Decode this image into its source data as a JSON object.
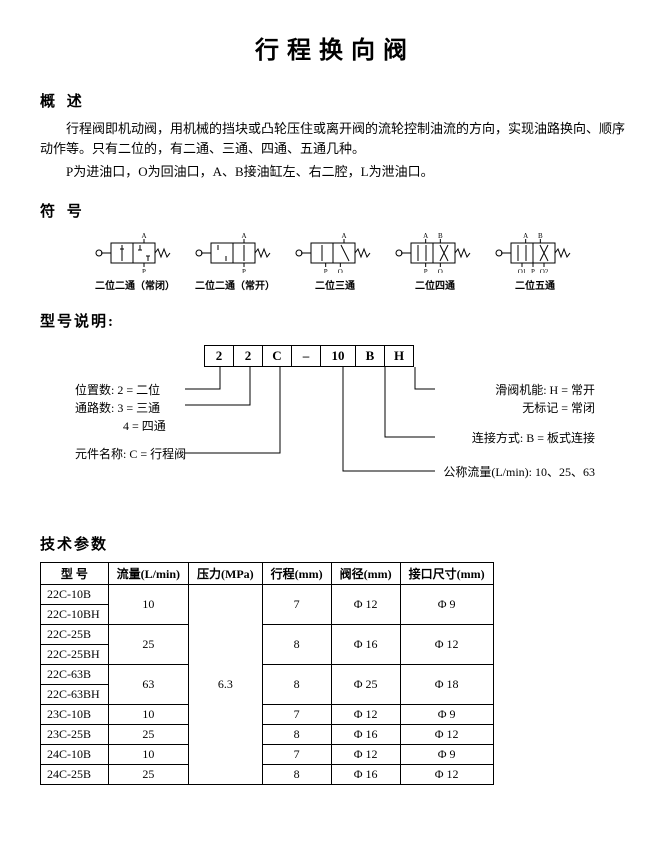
{
  "title": "行程换向阀",
  "sections": {
    "overview": {
      "heading": "概 述",
      "p1": "行程阀即机动阀，用机械的挡块或凸轮压住或离开阀的流轮控制油流的方向，实现油路换向、顺序动作等。只有二位的，有二通、三通、四通、五通几种。",
      "p2": "P为进油口，O为回油口，A、B接油缸左、右二腔，L为泄油口。"
    },
    "symbols": {
      "heading": "符 号",
      "items": [
        {
          "label": "二位二通（常闭）",
          "ports_top": [
            "A"
          ],
          "ports_bot": [
            "P"
          ]
        },
        {
          "label": "二位二通（常开）",
          "ports_top": [
            "A"
          ],
          "ports_bot": [
            "P"
          ]
        },
        {
          "label": "二位三通",
          "ports_top": [
            "A"
          ],
          "ports_bot": [
            "P",
            "O"
          ]
        },
        {
          "label": "二位四通",
          "ports_top": [
            "A",
            "B"
          ],
          "ports_bot": [
            "P",
            "O"
          ]
        },
        {
          "label": "二位五通",
          "ports_top": [
            "A",
            "B"
          ],
          "ports_bot": [
            "O1",
            "P",
            "O2"
          ]
        }
      ]
    },
    "model": {
      "heading": "型号说明:",
      "code": [
        "2",
        "2",
        "C",
        "–",
        "10",
        "B",
        "H"
      ],
      "left": [
        "位置数:  2 = 二位",
        "通路数:  3 = 三通",
        "　　　　4 = 四通",
        "元件名称:  C = 行程阀"
      ],
      "right": [
        "滑阀机能:  H = 常开",
        "　　　　　无标记 = 常闭",
        "连接方式:  B = 板式连接",
        "公称流量(L/min): 10、25、63"
      ]
    },
    "specs": {
      "heading": "技术参数",
      "columns": [
        "型  号",
        "流量(L/min)",
        "压力(MPa)",
        "行程(mm)",
        "阀径(mm)",
        "接口尺寸(mm)"
      ],
      "pressure": "6.3",
      "groups": [
        {
          "models": [
            "22C-10B",
            "22C-10BH"
          ],
          "flow": "10",
          "stroke": "7",
          "bore": "Φ 12",
          "port": "Φ 9"
        },
        {
          "models": [
            "22C-25B",
            "22C-25BH"
          ],
          "flow": "25",
          "stroke": "8",
          "bore": "Φ 16",
          "port": "Φ 12"
        },
        {
          "models": [
            "22C-63B",
            "22C-63BH"
          ],
          "flow": "63",
          "stroke": "8",
          "bore": "Φ 25",
          "port": "Φ 18"
        }
      ],
      "singles": [
        {
          "model": "23C-10B",
          "flow": "10",
          "stroke": "7",
          "bore": "Φ 12",
          "port": "Φ 9"
        },
        {
          "model": "23C-25B",
          "flow": "25",
          "stroke": "8",
          "bore": "Φ 16",
          "port": "Φ 12"
        },
        {
          "model": "24C-10B",
          "flow": "10",
          "stroke": "7",
          "bore": "Φ 12",
          "port": "Φ 9"
        },
        {
          "model": "24C-25B",
          "flow": "25",
          "stroke": "8",
          "bore": "Φ 16",
          "port": "Φ 12"
        }
      ]
    }
  },
  "style": {
    "line_color": "#000000",
    "bg": "#ffffff"
  }
}
